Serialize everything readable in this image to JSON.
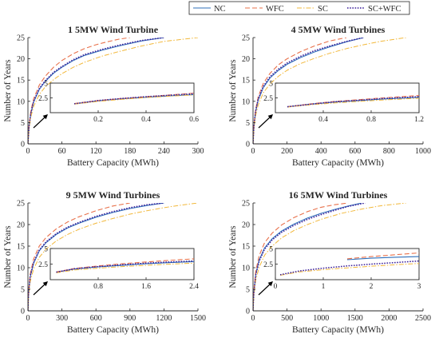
{
  "colors": {
    "NC": "#2f6fba",
    "WFC": "#e8704a",
    "SC": "#f2b83a",
    "SC+WFC": "#3b1f9a",
    "axis": "#262626"
  },
  "legend": {
    "items": [
      {
        "key": "NC",
        "label": "NC",
        "dash": "solid"
      },
      {
        "key": "WFC",
        "label": "WFC",
        "dash": "dashed"
      },
      {
        "key": "SC",
        "label": "SC",
        "dash": "dashdot"
      },
      {
        "key": "SC+WFC",
        "label": "SC+WFC",
        "dash": "dotted"
      }
    ]
  },
  "chart_data": [
    {
      "type": "line",
      "title": "1 5MW Wind Turbine",
      "xlabel": "Battery Capacity (MWh)",
      "ylabel": "Number of Years",
      "xlim": [
        0,
        300
      ],
      "ylim": [
        0,
        25
      ],
      "xticks": [
        0,
        60,
        120,
        180,
        240,
        300
      ],
      "yticks": [
        0,
        5,
        10,
        15,
        20,
        25
      ],
      "grid": false,
      "legend": "top-center",
      "series": [
        {
          "name": "NC",
          "x": [
            0,
            2,
            5,
            10,
            20,
            30,
            45,
            60,
            80,
            100,
            130,
            160,
            200,
            240
          ],
          "y": [
            0,
            4,
            7,
            9.8,
            12.8,
            14.6,
            16.6,
            18,
            19.6,
            20.8,
            22,
            23,
            24.2,
            25
          ]
        },
        {
          "name": "WFC",
          "x": [
            0,
            2,
            5,
            10,
            20,
            30,
            45,
            60,
            80,
            100,
            120,
            140,
            160,
            180
          ],
          "y": [
            0,
            4.4,
            7.6,
            10.6,
            13.8,
            15.8,
            18,
            19.6,
            21.2,
            22.4,
            23.3,
            24,
            24.6,
            25
          ]
        },
        {
          "name": "SC",
          "x": [
            0,
            2,
            5,
            10,
            20,
            30,
            45,
            60,
            80,
            100,
            130,
            160,
            200,
            240,
            300
          ],
          "y": [
            0,
            3.5,
            6.2,
            8.8,
            11.6,
            13.3,
            15.1,
            16.5,
            18,
            19.2,
            20.6,
            21.7,
            23,
            24.1,
            25
          ]
        },
        {
          "name": "SC+WFC",
          "x": [
            0,
            2,
            5,
            10,
            20,
            30,
            45,
            60,
            80,
            100,
            130,
            160,
            200,
            240
          ],
          "y": [
            0,
            4.1,
            7.1,
            10,
            13,
            14.8,
            16.8,
            18.2,
            19.8,
            21,
            22.2,
            23.2,
            24.3,
            25
          ]
        }
      ],
      "inset": {
        "xlim": [
          0,
          0.6
        ],
        "ylim": [
          0,
          5
        ],
        "xticks": [
          0.2,
          0.4,
          0.6
        ],
        "yticks": [
          2.5,
          5
        ],
        "series": [
          {
            "name": "NC",
            "x": [
              0.1,
              0.2,
              0.3,
              0.4,
              0.5,
              0.6
            ],
            "y": [
              1.5,
              2,
              2.35,
              2.6,
              2.85,
              3.05
            ]
          },
          {
            "name": "WFC",
            "x": [
              0.1,
              0.2,
              0.3,
              0.4,
              0.5,
              0.6
            ],
            "y": [
              1.55,
              2.05,
              2.4,
              2.7,
              3,
              3.3
            ]
          },
          {
            "name": "SC",
            "x": [
              0.1,
              0.2,
              0.3,
              0.4,
              0.5,
              0.6
            ],
            "y": [
              1.45,
              1.9,
              2.25,
              2.55,
              2.8,
              3
            ]
          },
          {
            "name": "SC+WFC",
            "x": [
              0.1,
              0.2,
              0.3,
              0.4,
              0.5,
              0.6
            ],
            "y": [
              1.5,
              2.05,
              2.4,
              2.7,
              2.95,
              3.2
            ]
          }
        ]
      }
    },
    {
      "type": "line",
      "title": "4 5MW Wind Turbines",
      "xlabel": "Battery Capacity (MWh)",
      "ylabel": "Number of Years",
      "xlim": [
        0,
        1000
      ],
      "ylim": [
        0,
        25
      ],
      "xticks": [
        0,
        200,
        400,
        600,
        800,
        1000
      ],
      "yticks": [
        0,
        5,
        10,
        15,
        20,
        25
      ],
      "grid": false,
      "series": [
        {
          "name": "NC",
          "x": [
            0,
            5,
            15,
            30,
            60,
            100,
            150,
            200,
            280,
            360,
            450,
            550,
            650
          ],
          "y": [
            0,
            4,
            7.5,
            10.2,
            13.2,
            15.5,
            17.3,
            18.7,
            20.3,
            21.6,
            22.8,
            24,
            25
          ]
        },
        {
          "name": "WFC",
          "x": [
            0,
            5,
            15,
            30,
            60,
            100,
            150,
            200,
            280,
            360,
            450,
            550
          ],
          "y": [
            0,
            4.4,
            8,
            11,
            14.2,
            16.6,
            18.6,
            20,
            21.7,
            23,
            24.2,
            25
          ]
        },
        {
          "name": "SC",
          "x": [
            0,
            5,
            15,
            30,
            60,
            100,
            150,
            200,
            280,
            360,
            450,
            550,
            650,
            750,
            900
          ],
          "y": [
            0,
            3.5,
            6.6,
            9.1,
            12,
            14.1,
            15.9,
            17.3,
            18.9,
            20.1,
            21.3,
            22.4,
            23.3,
            24.1,
            25
          ]
        },
        {
          "name": "SC+WFC",
          "x": [
            0,
            5,
            15,
            30,
            60,
            100,
            150,
            200,
            280,
            360,
            450,
            550,
            650
          ],
          "y": [
            0,
            4.1,
            7.7,
            10.5,
            13.5,
            15.8,
            17.6,
            19,
            20.6,
            21.9,
            23,
            24.1,
            25
          ]
        }
      ],
      "inset": {
        "xlim": [
          0,
          1.2
        ],
        "ylim": [
          0,
          5
        ],
        "xticks": [
          0.4,
          0.8,
          1.2
        ],
        "yticks": [
          2.5,
          5
        ],
        "series": [
          {
            "name": "NC",
            "x": [
              0.1,
              0.3,
              0.5,
              0.7,
              0.9,
              1.2
            ],
            "y": [
              1,
              1.45,
              1.8,
              2.05,
              2.3,
              2.6
            ]
          },
          {
            "name": "WFC",
            "x": [
              0.1,
              0.3,
              0.5,
              0.7,
              0.9,
              1.2
            ],
            "y": [
              1,
              1.5,
              1.9,
              2.2,
              2.5,
              2.9
            ]
          },
          {
            "name": "SC",
            "x": [
              0.1,
              0.3,
              0.5,
              0.7,
              0.9,
              1.2
            ],
            "y": [
              0.95,
              1.35,
              1.65,
              1.9,
              2.15,
              2.45
            ]
          },
          {
            "name": "SC+WFC",
            "x": [
              0.1,
              0.3,
              0.5,
              0.7,
              0.9,
              1.2
            ],
            "y": [
              1,
              1.45,
              1.85,
              2.1,
              2.4,
              2.7
            ]
          }
        ]
      }
    },
    {
      "type": "line",
      "title": "9 5MW Wind Turbines",
      "xlabel": "Battery Capacity (MWh)",
      "ylabel": "Number of Years",
      "xlim": [
        0,
        1500
      ],
      "ylim": [
        0,
        25
      ],
      "xticks": [
        0,
        300,
        600,
        900,
        1200,
        1500
      ],
      "yticks": [
        0,
        5,
        10,
        15,
        20,
        25
      ],
      "grid": false,
      "series": [
        {
          "name": "NC",
          "x": [
            0,
            5,
            20,
            50,
            100,
            160,
            250,
            350,
            450,
            600,
            750,
            900,
            1050,
            1200
          ],
          "y": [
            0,
            3.8,
            7.8,
            11,
            13.9,
            15.8,
            17.7,
            19.2,
            20.3,
            21.7,
            22.8,
            23.7,
            24.4,
            25
          ]
        },
        {
          "name": "WFC",
          "x": [
            0,
            5,
            20,
            50,
            100,
            160,
            250,
            350,
            450,
            600,
            750,
            900
          ],
          "y": [
            0,
            4.3,
            8.5,
            12,
            15,
            17,
            19,
            20.6,
            21.8,
            23.2,
            24.3,
            25
          ]
        },
        {
          "name": "SC",
          "x": [
            0,
            5,
            20,
            50,
            100,
            160,
            250,
            350,
            450,
            600,
            750,
            900,
            1050,
            1200,
            1350,
            1500
          ],
          "y": [
            0,
            3.2,
            6.7,
            9.7,
            12.4,
            14.3,
            16.2,
            17.7,
            18.9,
            20.3,
            21.4,
            22.4,
            23.2,
            23.9,
            24.5,
            25
          ]
        },
        {
          "name": "SC+WFC",
          "x": [
            0,
            5,
            20,
            50,
            100,
            160,
            250,
            350,
            450,
            600,
            750,
            900,
            1050,
            1200
          ],
          "y": [
            0,
            3.9,
            8,
            11.2,
            14.1,
            16,
            17.9,
            19.4,
            20.5,
            21.9,
            23,
            23.9,
            24.6,
            25
          ]
        }
      ],
      "inset": {
        "xlim": [
          0,
          2.4
        ],
        "ylim": [
          0,
          5
        ],
        "xticks": [
          0.8,
          1.6,
          2.4
        ],
        "yticks": [
          2.5,
          5
        ],
        "series": [
          {
            "name": "NC",
            "x": [
              0.1,
              0.4,
              0.8,
              1.2,
              1.6,
              2,
              2.4
            ],
            "y": [
              1.2,
              1.7,
              2.05,
              2.3,
              2.55,
              2.75,
              2.9
            ]
          },
          {
            "name": "WFC",
            "x": [
              0.1,
              0.4,
              0.8,
              1.2,
              1.6,
              2,
              2.4
            ],
            "y": [
              1.25,
              1.8,
              2.2,
              2.55,
              2.85,
              3.1,
              3.35
            ]
          },
          {
            "name": "SC",
            "x": [
              0.1,
              0.4,
              0.8,
              1.2,
              1.6,
              2,
              2.4
            ],
            "y": [
              1.1,
              1.55,
              1.85,
              2.1,
              2.3,
              2.5,
              2.65
            ]
          },
          {
            "name": "SC+WFC",
            "x": [
              0.1,
              0.4,
              0.8,
              1.2,
              1.6,
              2,
              2.4
            ],
            "y": [
              1.2,
              1.75,
              2.1,
              2.4,
              2.65,
              2.85,
              3
            ]
          }
        ]
      }
    },
    {
      "type": "line",
      "title": "16 5MW Wind Turbines",
      "xlabel": "Battery Capacity (MWh)",
      "ylabel": "Number of Years",
      "xlim": [
        0,
        2500
      ],
      "ylim": [
        0,
        25
      ],
      "xticks": [
        0,
        500,
        1000,
        1500,
        2000,
        2500
      ],
      "yticks": [
        0,
        5,
        10,
        15,
        20,
        25
      ],
      "grid": false,
      "series": [
        {
          "name": "NC",
          "x": [
            0,
            10,
            40,
            90,
            170,
            280,
            420,
            600,
            800,
            1000,
            1200,
            1400,
            1600
          ],
          "y": [
            0,
            4,
            8.5,
            11.8,
            14.6,
            16.7,
            18.5,
            20.1,
            21.5,
            22.6,
            23.5,
            24.3,
            25
          ]
        },
        {
          "name": "WFC",
          "x": [
            0,
            10,
            40,
            90,
            170,
            280,
            420,
            600,
            800,
            1000,
            1200,
            1400
          ],
          "y": [
            0,
            4.4,
            9.2,
            12.8,
            15.8,
            18,
            19.9,
            21.6,
            23,
            24,
            24.6,
            25
          ]
        },
        {
          "name": "SC",
          "x": [
            0,
            10,
            40,
            90,
            170,
            280,
            420,
            600,
            800,
            1000,
            1300,
            1600,
            1900,
            2250
          ],
          "y": [
            0,
            3.3,
            7.1,
            10.1,
            12.9,
            15,
            16.9,
            18.6,
            20,
            21.2,
            22.6,
            23.6,
            24.4,
            25
          ]
        },
        {
          "name": "SC+WFC",
          "x": [
            0,
            10,
            40,
            90,
            170,
            280,
            420,
            600,
            800,
            1000,
            1200,
            1400,
            1650
          ],
          "y": [
            0,
            3.9,
            8.3,
            11.5,
            14.3,
            16.4,
            18.2,
            19.8,
            21.2,
            22.3,
            23.3,
            24.2,
            25
          ]
        }
      ],
      "inset": {
        "xlim": [
          0,
          3
        ],
        "ylim": [
          0,
          5
        ],
        "xticks": [
          0,
          1,
          2,
          3
        ],
        "yticks": [
          2.5,
          5
        ],
        "series": [
          {
            "name": "NC",
            "x": [
              1.5,
              2,
              2.5,
              3
            ],
            "y": [
              3.2,
              3.45,
              3.6,
              3.7
            ]
          },
          {
            "name": "WFC",
            "x": [
              1.5,
              2,
              2.5,
              3
            ],
            "y": [
              3.35,
              3.7,
              4,
              4.3
            ]
          },
          {
            "name": "SC",
            "x": [
              0.1,
              0.5,
              1,
              1.5,
              2,
              2.5,
              3
            ],
            "y": [
              0.7,
              1.25,
              1.6,
              1.9,
              2.15,
              2.4,
              2.6
            ]
          },
          {
            "name": "SC+WFC",
            "x": [
              0.1,
              0.5,
              1,
              1.5,
              2,
              2.5,
              3
            ],
            "y": [
              0.8,
              1.4,
              1.85,
              2.2,
              2.5,
              2.75,
              3
            ]
          }
        ]
      }
    }
  ]
}
